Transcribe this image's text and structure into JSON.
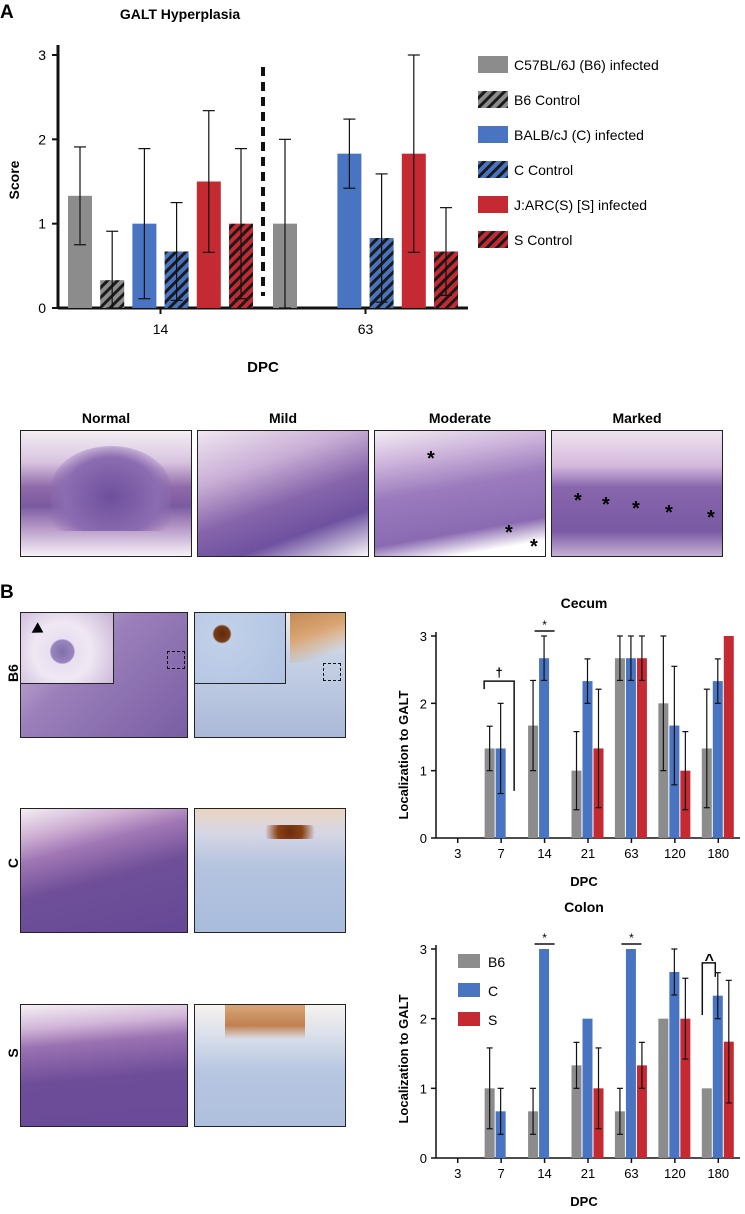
{
  "panels": {
    "a": "A",
    "b": "B"
  },
  "colors": {
    "gray": "#8c8c8c",
    "blue": "#4874c2",
    "red": "#c52a33"
  },
  "histology_a": {
    "labels": [
      "Normal",
      "Mild",
      "Moderate",
      "Marked"
    ]
  },
  "histology_b": {
    "row_labels": [
      "B6",
      "C",
      "S"
    ]
  },
  "chart_data": [
    {
      "type": "bar",
      "title": "GALT Hyperplasia",
      "xlabel": "DPC",
      "ylabel": "Score",
      "ylim": [
        0,
        3
      ],
      "yticks": [
        0,
        1,
        2,
        3
      ],
      "categories": [
        "14",
        "63"
      ],
      "legend_position": "right",
      "series": [
        {
          "name": "C57BL/6J (B6) infected",
          "color": "gray",
          "hatched": false,
          "values": [
            1.33,
            1.0
          ],
          "errors": [
            0.58,
            1.0
          ]
        },
        {
          "name": "B6 Control",
          "color": "gray",
          "hatched": true,
          "values": [
            0.33,
            null
          ],
          "errors": [
            0.58,
            null
          ]
        },
        {
          "name": "BALB/cJ (C) infected",
          "color": "blue",
          "hatched": false,
          "values": [
            1.0,
            1.83
          ],
          "errors": [
            0.89,
            0.41
          ]
        },
        {
          "name": "C Control",
          "color": "blue",
          "hatched": true,
          "values": [
            0.67,
            0.83
          ],
          "errors": [
            0.58,
            0.76
          ]
        },
        {
          "name": "J:ARC(S) [S] infected",
          "color": "red",
          "hatched": false,
          "values": [
            1.5,
            1.83
          ],
          "errors": [
            0.84,
            1.17
          ]
        },
        {
          "name": "S Control",
          "color": "red",
          "hatched": true,
          "values": [
            1.0,
            0.67
          ],
          "errors": [
            0.89,
            0.52
          ]
        }
      ]
    },
    {
      "type": "bar",
      "title": "Cecum",
      "xlabel": "DPC",
      "ylabel": "Localization to GALT",
      "ylim": [
        0,
        3
      ],
      "yticks": [
        0,
        1,
        2,
        3
      ],
      "categories": [
        "3",
        "7",
        "14",
        "21",
        "63",
        "120",
        "180"
      ],
      "series": [
        {
          "name": "B6",
          "color": "gray",
          "values": [
            null,
            1.33,
            1.67,
            1.0,
            2.67,
            2.0,
            1.33
          ],
          "errors": [
            null,
            0.33,
            0.67,
            0.58,
            0.33,
            1.0,
            0.88
          ]
        },
        {
          "name": "C",
          "color": "blue",
          "values": [
            null,
            1.33,
            2.67,
            2.33,
            2.67,
            1.67,
            2.33
          ],
          "errors": [
            null,
            0.67,
            0.33,
            0.33,
            0.33,
            0.88,
            0.33
          ]
        },
        {
          "name": "S",
          "color": "red",
          "values": [
            null,
            null,
            null,
            1.33,
            2.67,
            1.0,
            3.0
          ],
          "errors": [
            null,
            null,
            null,
            0.88,
            0.33,
            0.58,
            0
          ]
        }
      ],
      "annotations": [
        {
          "text": "*",
          "category": "14"
        },
        {
          "text": "†",
          "category": "7"
        }
      ]
    },
    {
      "type": "bar",
      "title": "Colon",
      "xlabel": "DPC",
      "ylabel": "Localization to GALT",
      "ylim": [
        0,
        3
      ],
      "yticks": [
        0,
        1,
        2,
        3
      ],
      "categories": [
        "3",
        "7",
        "14",
        "21",
        "63",
        "120",
        "180"
      ],
      "legend_position": "top-left",
      "series": [
        {
          "name": "B6",
          "color": "gray",
          "values": [
            null,
            1.0,
            0.67,
            1.33,
            0.67,
            2.0,
            1.0
          ],
          "errors": [
            null,
            0.58,
            0.33,
            0.33,
            0.33,
            0,
            0
          ]
        },
        {
          "name": "C",
          "color": "blue",
          "values": [
            null,
            0.67,
            3.0,
            2.0,
            3.0,
            2.67,
            2.33
          ],
          "errors": [
            null,
            0.33,
            0,
            0,
            0,
            0.33,
            0.33
          ]
        },
        {
          "name": "S",
          "color": "red",
          "values": [
            null,
            null,
            null,
            1.0,
            1.33,
            2.0,
            1.67
          ],
          "errors": [
            null,
            null,
            null,
            0.58,
            0.33,
            0.58,
            0.88
          ]
        }
      ],
      "annotations": [
        {
          "text": "*",
          "category": "14"
        },
        {
          "text": "*",
          "category": "63"
        },
        {
          "text": "^",
          "category": "180"
        }
      ]
    }
  ]
}
